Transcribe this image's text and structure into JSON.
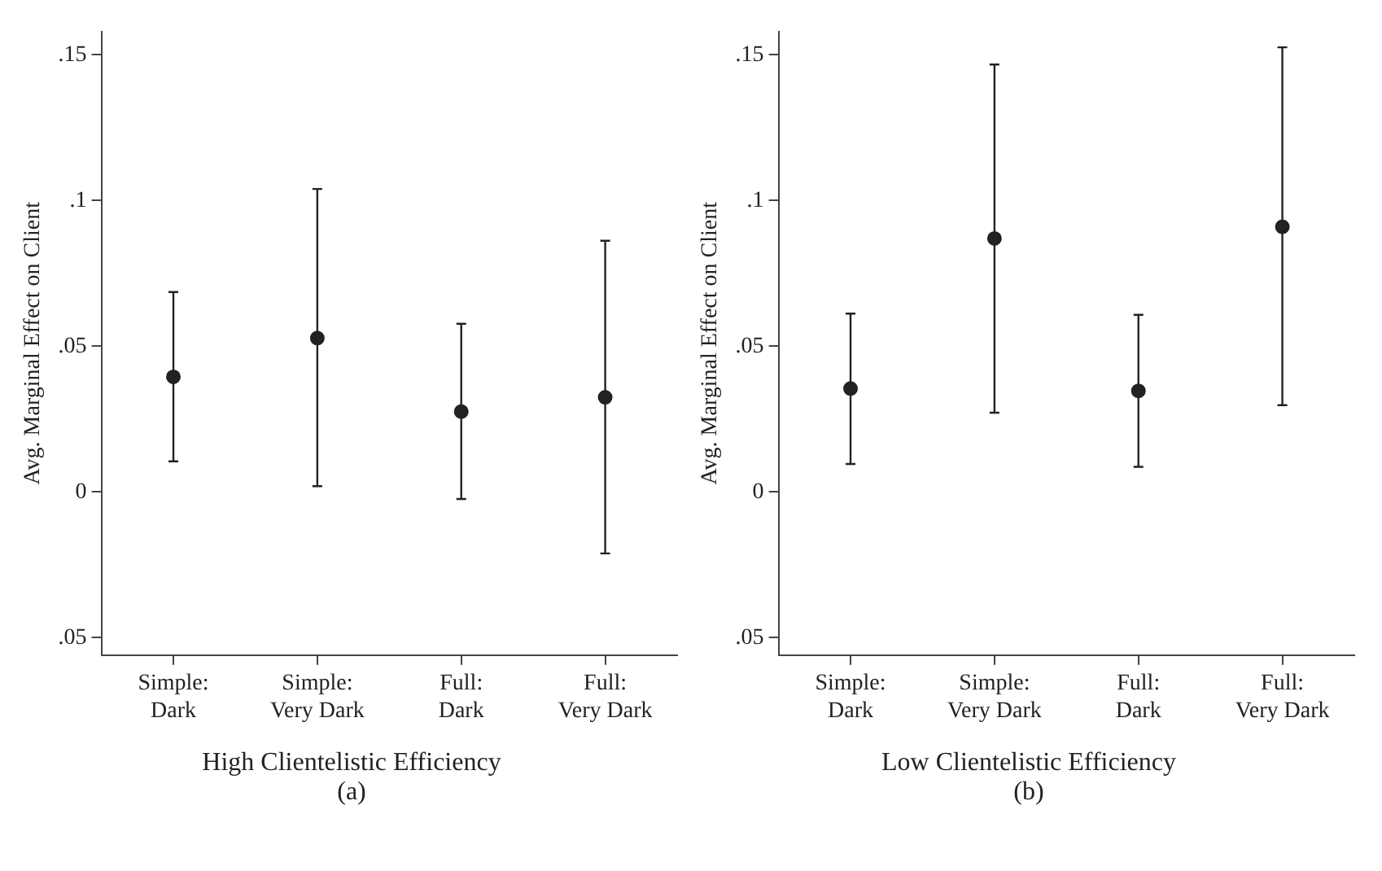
{
  "chart_data": [
    {
      "type": "scatter",
      "xlabel": "High Clientelistic Efficiency",
      "ylabel": "Avg. Marginal Effect on Client",
      "annotations": [
        "(a)"
      ],
      "categories": [
        "Simple:\nDark",
        "Simple:\nVery Dark",
        "Full:\nDark",
        "Full:\nVery Dark"
      ],
      "values": [
        0.0395,
        0.0528,
        0.0276,
        0.0325
      ],
      "errors": [
        [
          0.0105,
          0.0686
        ],
        [
          0.002,
          0.104
        ],
        [
          -0.0024,
          0.0577
        ],
        [
          -0.0211,
          0.0862
        ]
      ],
      "color": "#222222",
      "marker": "circle",
      "grid": false,
      "legend": false,
      "ylim": [
        -0.056,
        0.158
      ],
      "yticks": [
        {
          "value": -0.05,
          "label": ".05"
        },
        {
          "value": 0,
          "label": "0"
        },
        {
          "value": 0.05,
          "label": ".05"
        },
        {
          "value": 0.1,
          "label": ".1"
        },
        {
          "value": 0.15,
          "label": ".15"
        }
      ]
    },
    {
      "type": "scatter",
      "xlabel": "Low Clientelistic Efficiency",
      "ylabel": "Avg. Marginal Effect on Client",
      "annotations": [
        "(b)"
      ],
      "categories": [
        "Simple:\nDark",
        "Simple:\nVery Dark",
        "Full:\nDark",
        "Full:\nVery Dark"
      ],
      "values": [
        0.0355,
        0.087,
        0.0347,
        0.091
      ],
      "errors": [
        [
          0.0096,
          0.0612
        ],
        [
          0.0272,
          0.1467
        ],
        [
          0.0086,
          0.0608
        ],
        [
          0.0298,
          0.1526
        ]
      ],
      "color": "#222222",
      "marker": "circle",
      "grid": false,
      "legend": false,
      "ylim": [
        -0.056,
        0.158
      ],
      "yticks": [
        {
          "value": -0.05,
          "label": ".05"
        },
        {
          "value": 0,
          "label": "0"
        },
        {
          "value": 0.05,
          "label": ".05"
        },
        {
          "value": 0.1,
          "label": ".1"
        },
        {
          "value": 0.15,
          "label": ".15"
        }
      ]
    }
  ]
}
